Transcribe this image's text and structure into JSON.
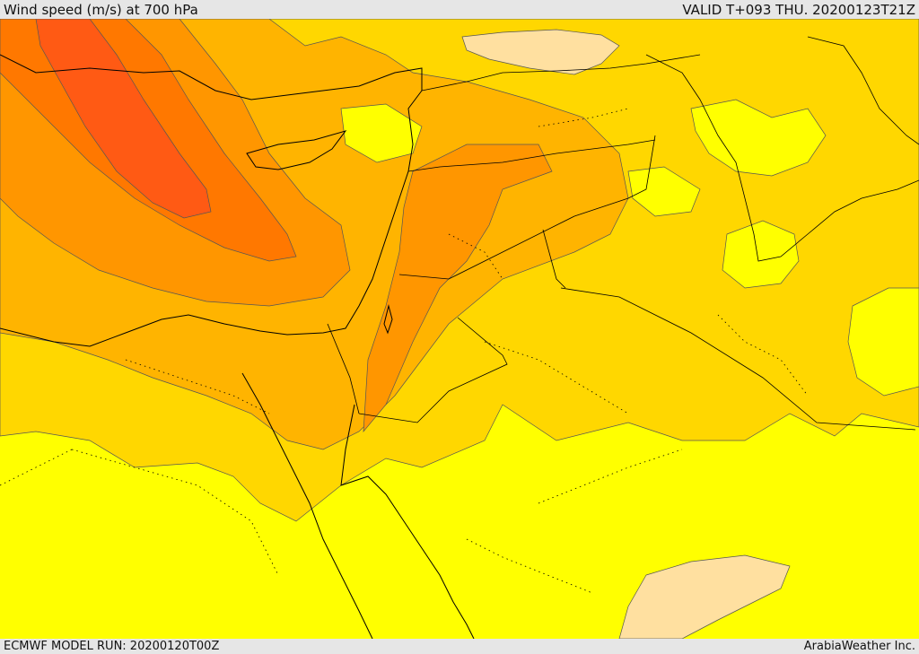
{
  "header": {
    "title": "Wind speed (m/s) at 700 hPa",
    "valid_time": "VALID T+093 THU. 20200123T21Z"
  },
  "footer": {
    "model_run": "ECMWF MODEL RUN: 20200120T00Z",
    "credit": "ArabiaWeather Inc."
  },
  "colors": {
    "band_lowest": "#ffe0a0",
    "band_low": "#ffff00",
    "band_lowmid": "#ffd700",
    "band_mid": "#ffb400",
    "band_midhigh": "#ff9600",
    "band_high": "#ff7800",
    "band_highest": "#ff5a14",
    "coastline": "#000000",
    "contour": "#555555"
  }
}
